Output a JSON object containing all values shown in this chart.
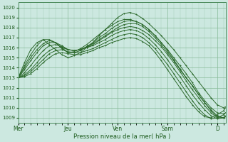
{
  "background_color": "#cce8e0",
  "plot_bg_color": "#cce8e0",
  "grid_color": "#88bb99",
  "line_color": "#2d6a2d",
  "marker_color": "#2d6a2d",
  "ylim": [
    1008.5,
    1020.5
  ],
  "yticks": [
    1009,
    1010,
    1011,
    1012,
    1013,
    1014,
    1015,
    1016,
    1017,
    1018,
    1019,
    1020
  ],
  "xlabel": "Pression niveau de la mer( hPa )",
  "day_labels": [
    "Mer",
    "Jeu",
    "Ven",
    "Sam",
    "D"
  ],
  "day_positions": [
    0,
    48,
    96,
    144,
    192
  ],
  "xlim": [
    0,
    200
  ],
  "linewidth": 0.7,
  "markersize": 2.0,
  "marker_every": 6,
  "series": [
    {
      "pts": [
        [
          0,
          1013.0
        ],
        [
          6,
          1014.5
        ],
        [
          12,
          1015.8
        ],
        [
          18,
          1016.5
        ],
        [
          24,
          1016.8
        ],
        [
          30,
          1016.3
        ],
        [
          36,
          1015.8
        ],
        [
          42,
          1015.3
        ],
        [
          48,
          1015.0
        ],
        [
          54,
          1015.2
        ],
        [
          60,
          1015.5
        ],
        [
          66,
          1016.0
        ],
        [
          72,
          1016.5
        ],
        [
          78,
          1017.2
        ],
        [
          84,
          1017.8
        ],
        [
          90,
          1018.4
        ],
        [
          96,
          1019.0
        ],
        [
          102,
          1019.4
        ],
        [
          108,
          1019.5
        ],
        [
          114,
          1019.3
        ],
        [
          120,
          1018.9
        ],
        [
          126,
          1018.4
        ],
        [
          132,
          1017.8
        ],
        [
          138,
          1017.2
        ],
        [
          144,
          1016.5
        ],
        [
          150,
          1015.8
        ],
        [
          156,
          1015.0
        ],
        [
          162,
          1014.2
        ],
        [
          168,
          1013.4
        ],
        [
          174,
          1012.6
        ],
        [
          180,
          1011.8
        ],
        [
          186,
          1011.0
        ],
        [
          192,
          1010.3
        ],
        [
          198,
          1010.0
        ],
        [
          200,
          1010.1
        ]
      ]
    },
    {
      "pts": [
        [
          0,
          1013.0
        ],
        [
          6,
          1014.2
        ],
        [
          12,
          1015.3
        ],
        [
          18,
          1016.2
        ],
        [
          24,
          1016.8
        ],
        [
          30,
          1016.8
        ],
        [
          36,
          1016.5
        ],
        [
          42,
          1015.9
        ],
        [
          48,
          1015.5
        ],
        [
          54,
          1015.6
        ],
        [
          60,
          1015.9
        ],
        [
          66,
          1016.3
        ],
        [
          72,
          1016.8
        ],
        [
          78,
          1017.3
        ],
        [
          84,
          1017.8
        ],
        [
          90,
          1018.2
        ],
        [
          96,
          1018.6
        ],
        [
          102,
          1018.8
        ],
        [
          108,
          1018.8
        ],
        [
          114,
          1018.6
        ],
        [
          120,
          1018.3
        ],
        [
          126,
          1017.8
        ],
        [
          132,
          1017.2
        ],
        [
          138,
          1016.5
        ],
        [
          144,
          1015.8
        ],
        [
          150,
          1015.0
        ],
        [
          156,
          1014.2
        ],
        [
          162,
          1013.4
        ],
        [
          168,
          1012.5
        ],
        [
          174,
          1011.5
        ],
        [
          180,
          1010.7
        ],
        [
          186,
          1010.0
        ],
        [
          192,
          1009.5
        ],
        [
          198,
          1009.4
        ],
        [
          200,
          1009.5
        ]
      ]
    },
    {
      "pts": [
        [
          0,
          1013.0
        ],
        [
          6,
          1014.0
        ],
        [
          12,
          1015.0
        ],
        [
          18,
          1015.8
        ],
        [
          24,
          1016.4
        ],
        [
          30,
          1016.7
        ],
        [
          36,
          1016.5
        ],
        [
          42,
          1016.0
        ],
        [
          48,
          1015.5
        ],
        [
          54,
          1015.5
        ],
        [
          60,
          1015.7
        ],
        [
          66,
          1016.1
        ],
        [
          72,
          1016.5
        ],
        [
          78,
          1017.0
        ],
        [
          84,
          1017.4
        ],
        [
          90,
          1017.9
        ],
        [
          96,
          1018.3
        ],
        [
          102,
          1018.6
        ],
        [
          108,
          1018.7
        ],
        [
          114,
          1018.6
        ],
        [
          120,
          1018.3
        ],
        [
          126,
          1017.8
        ],
        [
          132,
          1017.2
        ],
        [
          138,
          1016.5
        ],
        [
          144,
          1015.7
        ],
        [
          150,
          1014.8
        ],
        [
          156,
          1013.9
        ],
        [
          162,
          1013.0
        ],
        [
          168,
          1012.2
        ],
        [
          174,
          1011.3
        ],
        [
          180,
          1010.5
        ],
        [
          186,
          1009.7
        ],
        [
          192,
          1009.1
        ],
        [
          198,
          1009.0
        ],
        [
          200,
          1009.1
        ]
      ]
    },
    {
      "pts": [
        [
          0,
          1013.0
        ],
        [
          6,
          1013.8
        ],
        [
          12,
          1014.7
        ],
        [
          18,
          1015.5
        ],
        [
          24,
          1016.2
        ],
        [
          30,
          1016.5
        ],
        [
          36,
          1016.5
        ],
        [
          42,
          1016.2
        ],
        [
          48,
          1015.8
        ],
        [
          54,
          1015.7
        ],
        [
          60,
          1015.8
        ],
        [
          66,
          1016.1
        ],
        [
          72,
          1016.4
        ],
        [
          78,
          1016.8
        ],
        [
          84,
          1017.2
        ],
        [
          90,
          1017.6
        ],
        [
          96,
          1018.0
        ],
        [
          102,
          1018.3
        ],
        [
          108,
          1018.4
        ],
        [
          114,
          1018.4
        ],
        [
          120,
          1018.1
        ],
        [
          126,
          1017.6
        ],
        [
          132,
          1017.0
        ],
        [
          138,
          1016.3
        ],
        [
          144,
          1015.5
        ],
        [
          150,
          1014.7
        ],
        [
          156,
          1013.8
        ],
        [
          162,
          1013.0
        ],
        [
          168,
          1012.2
        ],
        [
          174,
          1011.3
        ],
        [
          180,
          1010.5
        ],
        [
          186,
          1009.8
        ],
        [
          192,
          1009.2
        ],
        [
          198,
          1009.0
        ],
        [
          200,
          1009.1
        ]
      ]
    },
    {
      "pts": [
        [
          0,
          1013.0
        ],
        [
          6,
          1013.5
        ],
        [
          12,
          1014.2
        ],
        [
          18,
          1015.0
        ],
        [
          24,
          1015.7
        ],
        [
          30,
          1016.2
        ],
        [
          36,
          1016.3
        ],
        [
          42,
          1016.1
        ],
        [
          48,
          1015.8
        ],
        [
          54,
          1015.7
        ],
        [
          60,
          1015.8
        ],
        [
          66,
          1016.0
        ],
        [
          72,
          1016.3
        ],
        [
          78,
          1016.7
        ],
        [
          84,
          1017.1
        ],
        [
          90,
          1017.5
        ],
        [
          96,
          1017.8
        ],
        [
          102,
          1018.0
        ],
        [
          108,
          1018.1
        ],
        [
          114,
          1018.0
        ],
        [
          120,
          1017.7
        ],
        [
          126,
          1017.3
        ],
        [
          132,
          1016.7
        ],
        [
          138,
          1016.1
        ],
        [
          144,
          1015.3
        ],
        [
          150,
          1014.5
        ],
        [
          156,
          1013.6
        ],
        [
          162,
          1012.7
        ],
        [
          168,
          1011.8
        ],
        [
          174,
          1011.0
        ],
        [
          180,
          1010.2
        ],
        [
          186,
          1009.5
        ],
        [
          192,
          1009.0
        ],
        [
          198,
          1009.0
        ],
        [
          200,
          1009.1
        ]
      ]
    },
    {
      "pts": [
        [
          0,
          1013.0
        ],
        [
          6,
          1013.3
        ],
        [
          12,
          1013.8
        ],
        [
          18,
          1014.5
        ],
        [
          24,
          1015.2
        ],
        [
          30,
          1015.7
        ],
        [
          36,
          1016.0
        ],
        [
          42,
          1016.0
        ],
        [
          48,
          1015.8
        ],
        [
          54,
          1015.7
        ],
        [
          60,
          1015.8
        ],
        [
          66,
          1016.0
        ],
        [
          72,
          1016.2
        ],
        [
          78,
          1016.5
        ],
        [
          84,
          1016.8
        ],
        [
          90,
          1017.2
        ],
        [
          96,
          1017.5
        ],
        [
          102,
          1017.7
        ],
        [
          108,
          1017.8
        ],
        [
          114,
          1017.7
        ],
        [
          120,
          1017.4
        ],
        [
          126,
          1016.9
        ],
        [
          132,
          1016.3
        ],
        [
          138,
          1015.6
        ],
        [
          144,
          1014.8
        ],
        [
          150,
          1013.9
        ],
        [
          156,
          1013.1
        ],
        [
          162,
          1012.2
        ],
        [
          168,
          1011.3
        ],
        [
          174,
          1010.5
        ],
        [
          180,
          1009.8
        ],
        [
          186,
          1009.2
        ],
        [
          192,
          1008.9
        ],
        [
          198,
          1009.0
        ],
        [
          200,
          1009.2
        ]
      ]
    },
    {
      "pts": [
        [
          0,
          1013.0
        ],
        [
          6,
          1013.2
        ],
        [
          12,
          1013.6
        ],
        [
          18,
          1014.2
        ],
        [
          24,
          1014.8
        ],
        [
          30,
          1015.4
        ],
        [
          36,
          1015.7
        ],
        [
          42,
          1015.8
        ],
        [
          48,
          1015.6
        ],
        [
          54,
          1015.5
        ],
        [
          60,
          1015.5
        ],
        [
          66,
          1015.7
        ],
        [
          72,
          1015.9
        ],
        [
          78,
          1016.2
        ],
        [
          84,
          1016.5
        ],
        [
          90,
          1016.8
        ],
        [
          96,
          1017.1
        ],
        [
          102,
          1017.3
        ],
        [
          108,
          1017.4
        ],
        [
          114,
          1017.3
        ],
        [
          120,
          1017.0
        ],
        [
          126,
          1016.5
        ],
        [
          132,
          1015.9
        ],
        [
          138,
          1015.1
        ],
        [
          144,
          1014.3
        ],
        [
          150,
          1013.4
        ],
        [
          156,
          1012.5
        ],
        [
          162,
          1011.6
        ],
        [
          168,
          1010.7
        ],
        [
          174,
          1009.9
        ],
        [
          180,
          1009.3
        ],
        [
          186,
          1008.9
        ],
        [
          192,
          1009.0
        ],
        [
          198,
          1009.3
        ],
        [
          200,
          1009.5
        ]
      ]
    },
    {
      "pts": [
        [
          0,
          1013.0
        ],
        [
          6,
          1013.1
        ],
        [
          12,
          1013.4
        ],
        [
          18,
          1013.9
        ],
        [
          24,
          1014.5
        ],
        [
          30,
          1015.0
        ],
        [
          36,
          1015.4
        ],
        [
          42,
          1015.5
        ],
        [
          48,
          1015.4
        ],
        [
          54,
          1015.3
        ],
        [
          60,
          1015.3
        ],
        [
          66,
          1015.5
        ],
        [
          72,
          1015.7
        ],
        [
          78,
          1016.0
        ],
        [
          84,
          1016.2
        ],
        [
          90,
          1016.5
        ],
        [
          96,
          1016.7
        ],
        [
          102,
          1016.9
        ],
        [
          108,
          1017.0
        ],
        [
          114,
          1016.9
        ],
        [
          120,
          1016.6
        ],
        [
          126,
          1016.2
        ],
        [
          132,
          1015.5
        ],
        [
          138,
          1014.7
        ],
        [
          144,
          1013.8
        ],
        [
          150,
          1012.9
        ],
        [
          156,
          1012.0
        ],
        [
          162,
          1011.1
        ],
        [
          168,
          1010.3
        ],
        [
          174,
          1009.6
        ],
        [
          180,
          1009.1
        ],
        [
          186,
          1009.0
        ],
        [
          192,
          1009.3
        ],
        [
          198,
          1009.7
        ],
        [
          200,
          1010.0
        ]
      ]
    }
  ]
}
